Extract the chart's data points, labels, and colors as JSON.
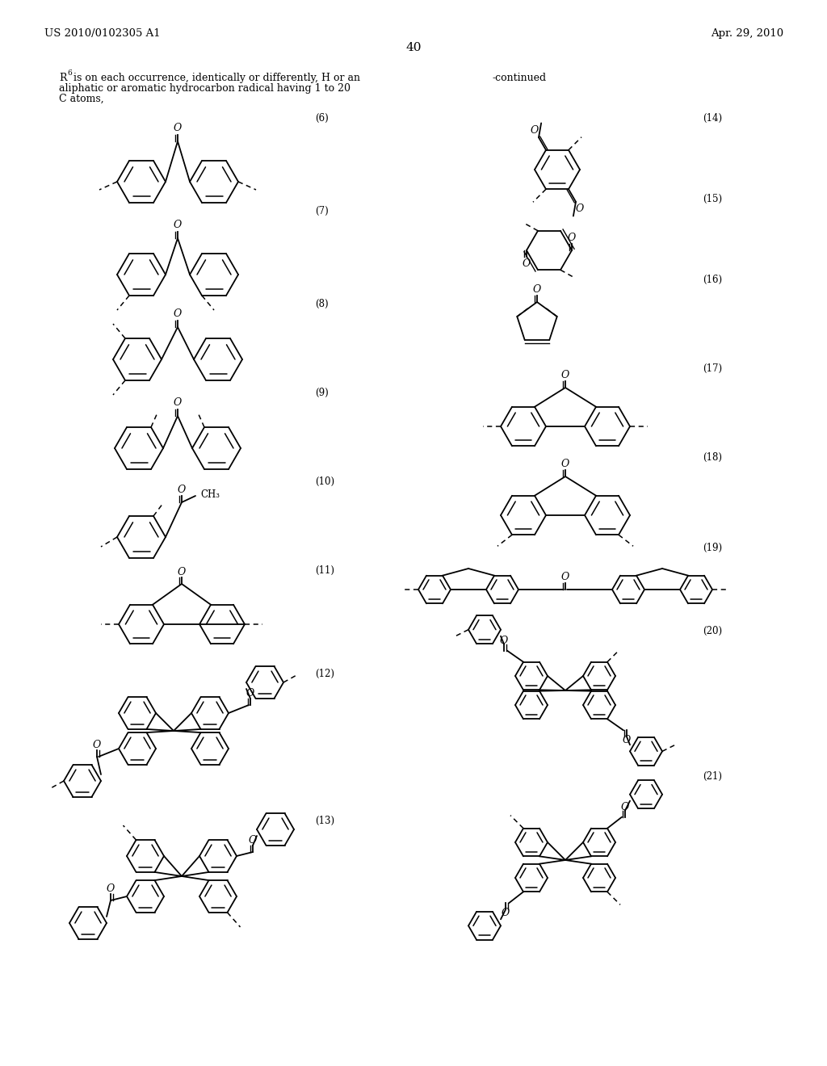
{
  "page_number": "40",
  "patent_number": "US 2010/0102305 A1",
  "patent_date": "Apr. 29, 2010",
  "background_color": "#ffffff",
  "text_color": "#000000"
}
